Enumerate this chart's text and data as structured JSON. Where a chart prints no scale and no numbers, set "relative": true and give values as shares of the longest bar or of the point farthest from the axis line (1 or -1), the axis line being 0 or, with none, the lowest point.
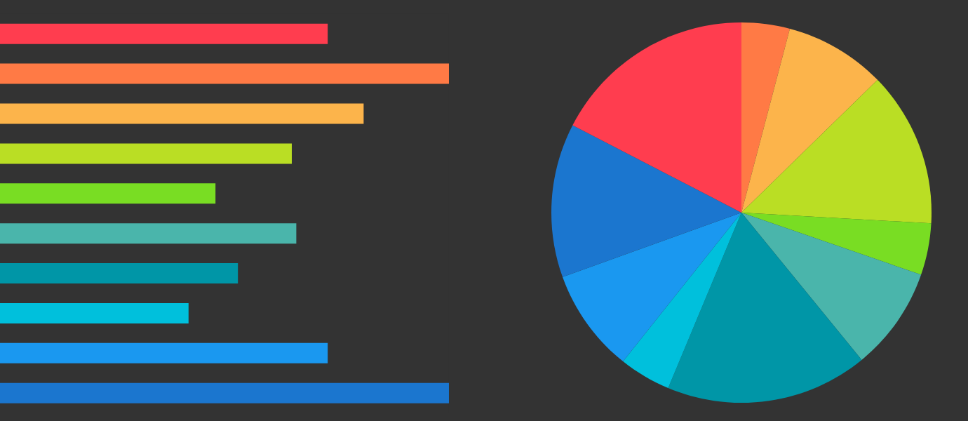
{
  "chart_data": [
    {
      "type": "bar",
      "orientation": "horizontal",
      "relative": true,
      "categories": [
        null,
        null,
        null,
        null,
        null,
        null,
        null,
        null,
        null,
        null
      ],
      "values": [
        0.73,
        1,
        0.81,
        0.65,
        0.48,
        0.66,
        0.53,
        0.42,
        0.73,
        1
      ],
      "colors": [
        "#ff3d4f",
        "#ff7a45",
        "#fcb44b",
        "#bade24",
        "#79dd23",
        "#4ab5ab",
        "#0096a7",
        "#00c0dc",
        "#1a98f0",
        "#1b76cf"
      ]
    },
    {
      "type": "pie",
      "categories": [
        null,
        null,
        null,
        null,
        null,
        null,
        null,
        null,
        null,
        null
      ],
      "values": [
        4.1,
        8.6,
        13.2,
        4.4,
        8.8,
        17.2,
        4.4,
        8.8,
        13.1,
        17.4
      ],
      "colors": [
        "#ff7a45",
        "#fcb44b",
        "#bade24",
        "#79dd23",
        "#4ab5ab",
        "#0096a7",
        "#00c0dc",
        "#1a98f0",
        "#1b76cf",
        "#ff3d4f"
      ]
    }
  ]
}
